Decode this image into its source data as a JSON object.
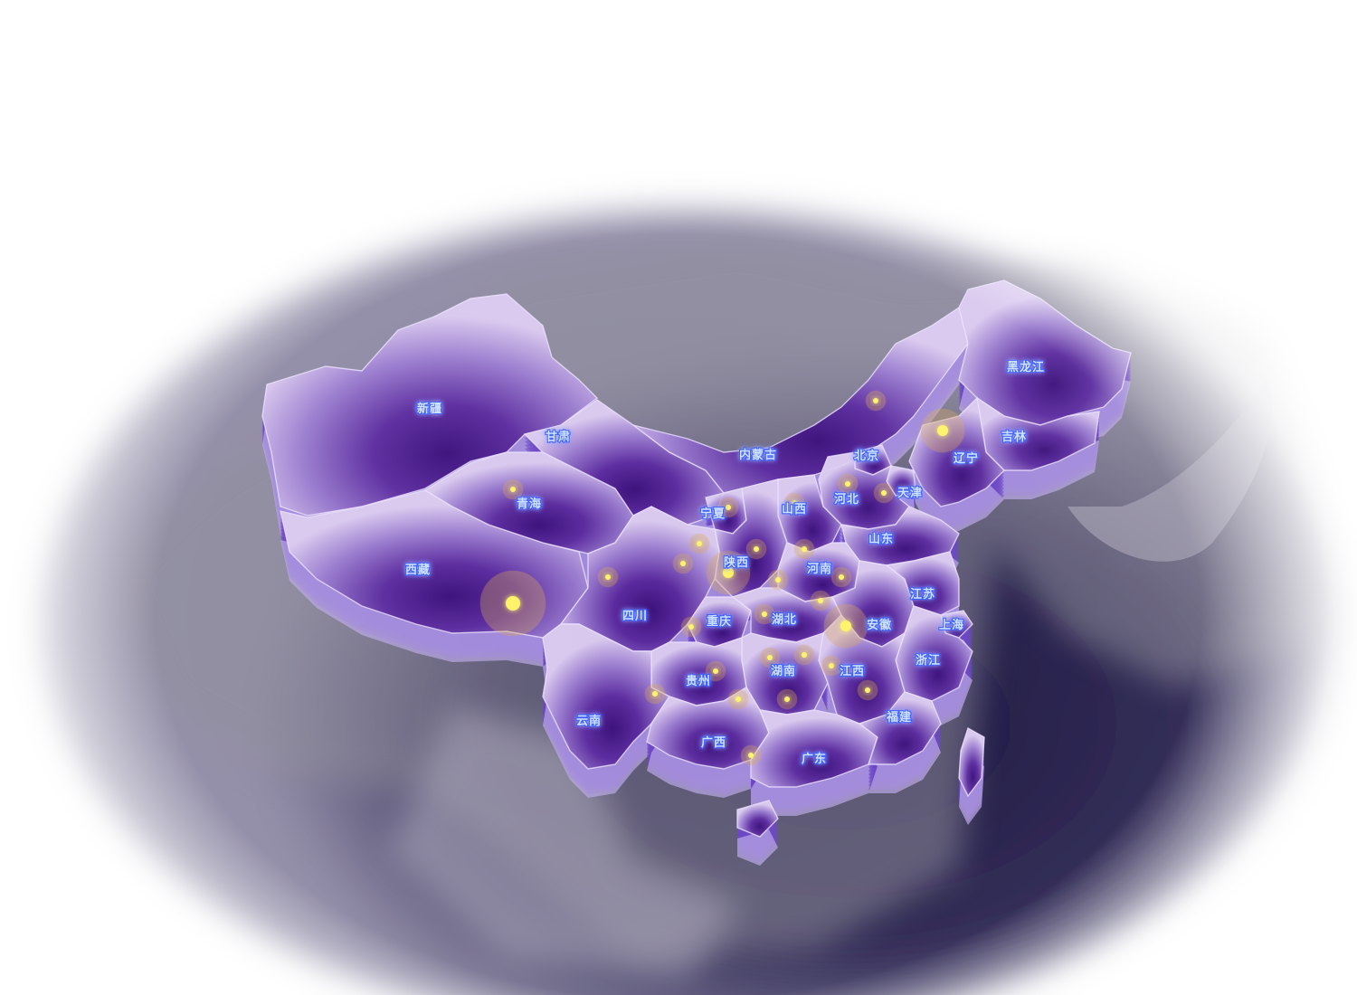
{
  "map": {
    "colors": {
      "land_light": "#cdb8e8",
      "land_mid": "#8a66c8",
      "land_dark": "#3c1478",
      "border": "#e9ddff",
      "extrusion": "#6a44c4",
      "sea": "#1a1440",
      "label_fill": "#cfe2ff",
      "label_glow": "#3a5cff",
      "point_core": "#fff36a",
      "point_halo": "#d8a85a"
    },
    "provinces": [
      {
        "id": "xinjiang",
        "name": "新疆"
      },
      {
        "id": "gansu",
        "name": "甘肃"
      },
      {
        "id": "qinghai",
        "name": "青海"
      },
      {
        "id": "xizang",
        "name": "西藏"
      },
      {
        "id": "neimenggu",
        "name": "内蒙古"
      },
      {
        "id": "heilongjiang",
        "name": "黑龙江"
      },
      {
        "id": "jilin",
        "name": "吉林"
      },
      {
        "id": "liaoning",
        "name": "辽宁"
      },
      {
        "id": "beijing",
        "name": "北京"
      },
      {
        "id": "tianjin",
        "name": "天津"
      },
      {
        "id": "hebei",
        "name": "河北"
      },
      {
        "id": "shanxi",
        "name": "山西"
      },
      {
        "id": "ningxia",
        "name": "宁夏"
      },
      {
        "id": "shaanxi",
        "name": "陕西"
      },
      {
        "id": "shandong",
        "name": "山东"
      },
      {
        "id": "henan",
        "name": "河南"
      },
      {
        "id": "sichuan",
        "name": "四川"
      },
      {
        "id": "chongqing",
        "name": "重庆"
      },
      {
        "id": "hubei",
        "name": "湖北"
      },
      {
        "id": "anhui",
        "name": "安徽"
      },
      {
        "id": "jiangsu",
        "name": "江苏"
      },
      {
        "id": "shanghai",
        "name": "上海"
      },
      {
        "id": "zhejiang",
        "name": "浙江"
      },
      {
        "id": "jiangxi",
        "name": "江西"
      },
      {
        "id": "hunan",
        "name": "湖南"
      },
      {
        "id": "guizhou",
        "name": "贵州"
      },
      {
        "id": "yunnan",
        "name": "云南"
      },
      {
        "id": "guangxi",
        "name": "广西"
      },
      {
        "id": "guangdong",
        "name": "广东"
      },
      {
        "id": "fujian",
        "name": "福建"
      }
    ],
    "points": [
      {
        "id": "p-xizang-big",
        "size": "large"
      },
      {
        "id": "p-liaoning",
        "size": "medium"
      },
      {
        "id": "p-anhui",
        "size": "medium"
      },
      {
        "id": "p-shaanxi",
        "size": "medium"
      },
      {
        "id": "p-qinghai",
        "size": "small"
      },
      {
        "id": "p-neimenggu",
        "size": "small"
      },
      {
        "id": "p-hebei",
        "size": "small"
      },
      {
        "id": "p-tianjin",
        "size": "small"
      },
      {
        "id": "p-shanxi",
        "size": "small"
      },
      {
        "id": "p-ningxia",
        "size": "small"
      },
      {
        "id": "p-shaanxi-n",
        "size": "small"
      },
      {
        "id": "p-shaanxi-e",
        "size": "small"
      },
      {
        "id": "p-shaanxi-w",
        "size": "small"
      },
      {
        "id": "p-gansu-s",
        "size": "small"
      },
      {
        "id": "p-henan-w",
        "size": "small"
      },
      {
        "id": "p-henan-e",
        "size": "small"
      },
      {
        "id": "p-henan-c",
        "size": "small"
      },
      {
        "id": "p-henan-s",
        "size": "small"
      },
      {
        "id": "p-hubei-w",
        "size": "small"
      },
      {
        "id": "p-chongqing",
        "size": "small"
      },
      {
        "id": "p-hunan-n",
        "size": "small"
      },
      {
        "id": "p-hunan-e",
        "size": "small"
      },
      {
        "id": "p-jiangxi-w",
        "size": "small"
      },
      {
        "id": "p-jiangxi-s",
        "size": "small"
      },
      {
        "id": "p-guizhou",
        "size": "small"
      },
      {
        "id": "p-guizhou-s",
        "size": "small"
      },
      {
        "id": "p-guangxi-n",
        "size": "small"
      },
      {
        "id": "p-hunan-s",
        "size": "small"
      },
      {
        "id": "p-guangxi-e",
        "size": "small"
      }
    ]
  }
}
